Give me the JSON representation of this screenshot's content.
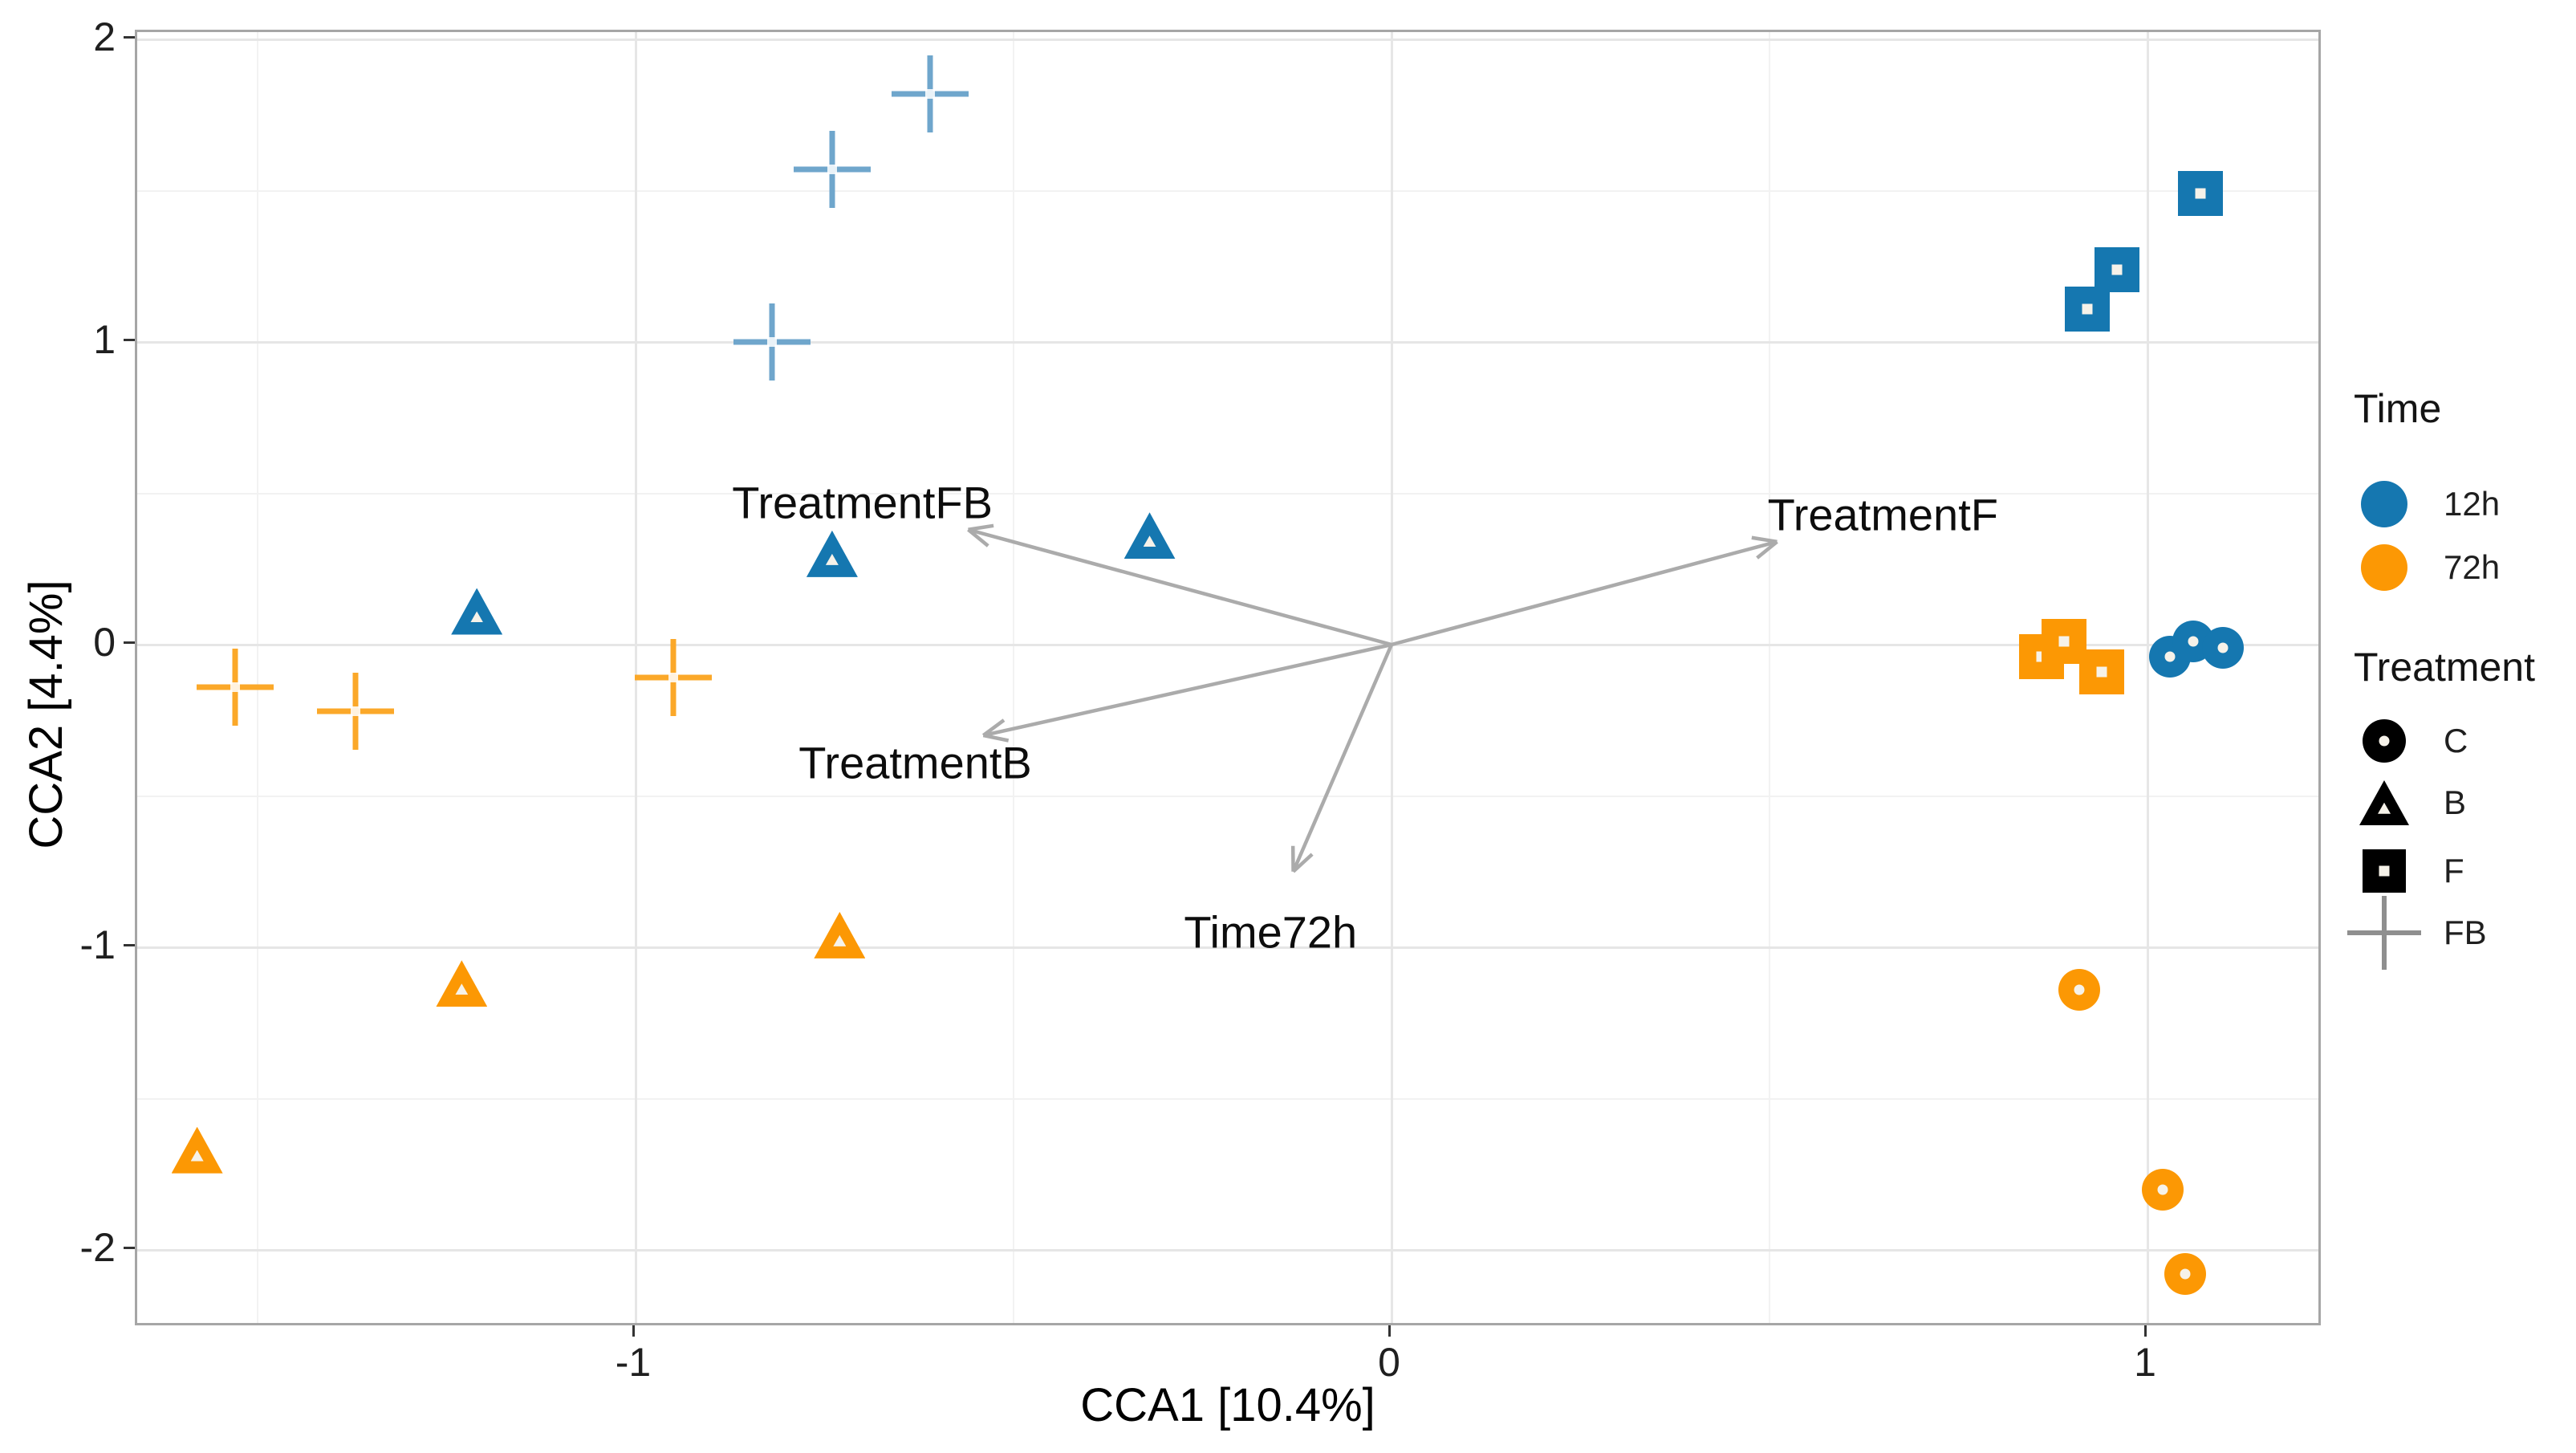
{
  "chart_data": {
    "type": "scatter",
    "title": "",
    "xlabel": "CCA1 [10.4%]",
    "ylabel": "CCA2 [4.4%]",
    "xlim": [
      -1.66,
      1.23
    ],
    "ylim": [
      -2.26,
      2.02
    ],
    "grid": "on",
    "x_major_ticks": [
      -1,
      0,
      1
    ],
    "x_major_labels": [
      "-1",
      "0",
      "1"
    ],
    "x_minor_ticks": [
      -1.5,
      -0.5,
      0.5
    ],
    "y_major_ticks": [
      2,
      1,
      0,
      -1,
      -2
    ],
    "y_major_labels": [
      "2",
      "1",
      "0",
      "-1",
      "-2"
    ],
    "y_minor_ticks": [
      1.5,
      0.5,
      -0.5,
      -1.5
    ],
    "series": [
      {
        "name": "FB 12h",
        "time": "12h",
        "treatment": "FB",
        "shape": "plus",
        "color": "#6fa6cc",
        "points": [
          [
            -0.82,
            1.0
          ],
          [
            -0.74,
            1.57
          ],
          [
            -0.61,
            1.82
          ]
        ]
      },
      {
        "name": "FB 72h",
        "time": "72h",
        "treatment": "FB",
        "shape": "plus",
        "color": "#fba829",
        "points": [
          [
            -1.53,
            -0.14
          ],
          [
            -1.37,
            -0.22
          ],
          [
            -0.95,
            -0.11
          ]
        ]
      },
      {
        "name": "B 12h",
        "time": "12h",
        "treatment": "B",
        "shape": "triangle",
        "color": "#1577b0",
        "points": [
          [
            -1.21,
            0.11
          ],
          [
            -0.74,
            0.3
          ],
          [
            -0.32,
            0.36
          ]
        ]
      },
      {
        "name": "B 72h",
        "time": "72h",
        "treatment": "B",
        "shape": "triangle",
        "color": "#fc9804",
        "points": [
          [
            -1.58,
            -1.67
          ],
          [
            -1.23,
            -1.12
          ],
          [
            -0.73,
            -0.96
          ]
        ]
      },
      {
        "name": "F 12h",
        "time": "12h",
        "treatment": "F",
        "shape": "square",
        "color": "#1577b0",
        "points": [
          [
            0.92,
            1.11
          ],
          [
            0.96,
            1.24
          ],
          [
            1.07,
            1.49
          ]
        ]
      },
      {
        "name": "F 72h",
        "time": "72h",
        "treatment": "F",
        "shape": "square",
        "color": "#fc9804",
        "points": [
          [
            0.86,
            -0.04
          ],
          [
            0.89,
            0.01
          ],
          [
            0.94,
            -0.09
          ]
        ]
      },
      {
        "name": "C 12h",
        "time": "12h",
        "treatment": "C",
        "shape": "circle",
        "color": "#1577b0",
        "points": [
          [
            1.03,
            -0.04
          ],
          [
            1.06,
            0.01
          ],
          [
            1.1,
            -0.01
          ]
        ]
      },
      {
        "name": "C 72h",
        "time": "72h",
        "treatment": "C",
        "shape": "circle",
        "color": "#fc9804",
        "points": [
          [
            0.91,
            -1.14
          ],
          [
            1.02,
            -1.8
          ],
          [
            1.05,
            -2.08
          ]
        ]
      }
    ],
    "vectors": [
      {
        "label": "TreatmentFB",
        "x": -0.56,
        "y": 0.38,
        "label_x": -0.7,
        "label_y": 0.47
      },
      {
        "label": "TreatmentB",
        "x": -0.54,
        "y": -0.3,
        "label_x": -0.63,
        "label_y": -0.39
      },
      {
        "label": "TreatmentF",
        "x": 0.51,
        "y": 0.34,
        "label_x": 0.65,
        "label_y": 0.43
      },
      {
        "label": "Time72h",
        "x": -0.13,
        "y": -0.75,
        "label_x": -0.16,
        "label_y": -0.95
      }
    ],
    "legend": {
      "time": {
        "title": "Time",
        "items": [
          {
            "label": "12h",
            "color": "#1577b0"
          },
          {
            "label": "72h",
            "color": "#fc9804"
          }
        ]
      },
      "treatment": {
        "title": "Treatment",
        "items": [
          {
            "label": "C",
            "shape": "circle",
            "color": "#000000"
          },
          {
            "label": "B",
            "shape": "triangle",
            "color": "#000000"
          },
          {
            "label": "F",
            "shape": "square",
            "color": "#000000"
          },
          {
            "label": "FB",
            "shape": "plus",
            "color": "#8f8f8f"
          }
        ]
      }
    },
    "colors": {
      "arrow": "#ababab",
      "grid_major": "#e6e6e6",
      "grid_minor": "#f2f2f2",
      "panel_border": "#a6a6a6",
      "blue": "#1577b0",
      "orange": "#fc9804"
    }
  }
}
